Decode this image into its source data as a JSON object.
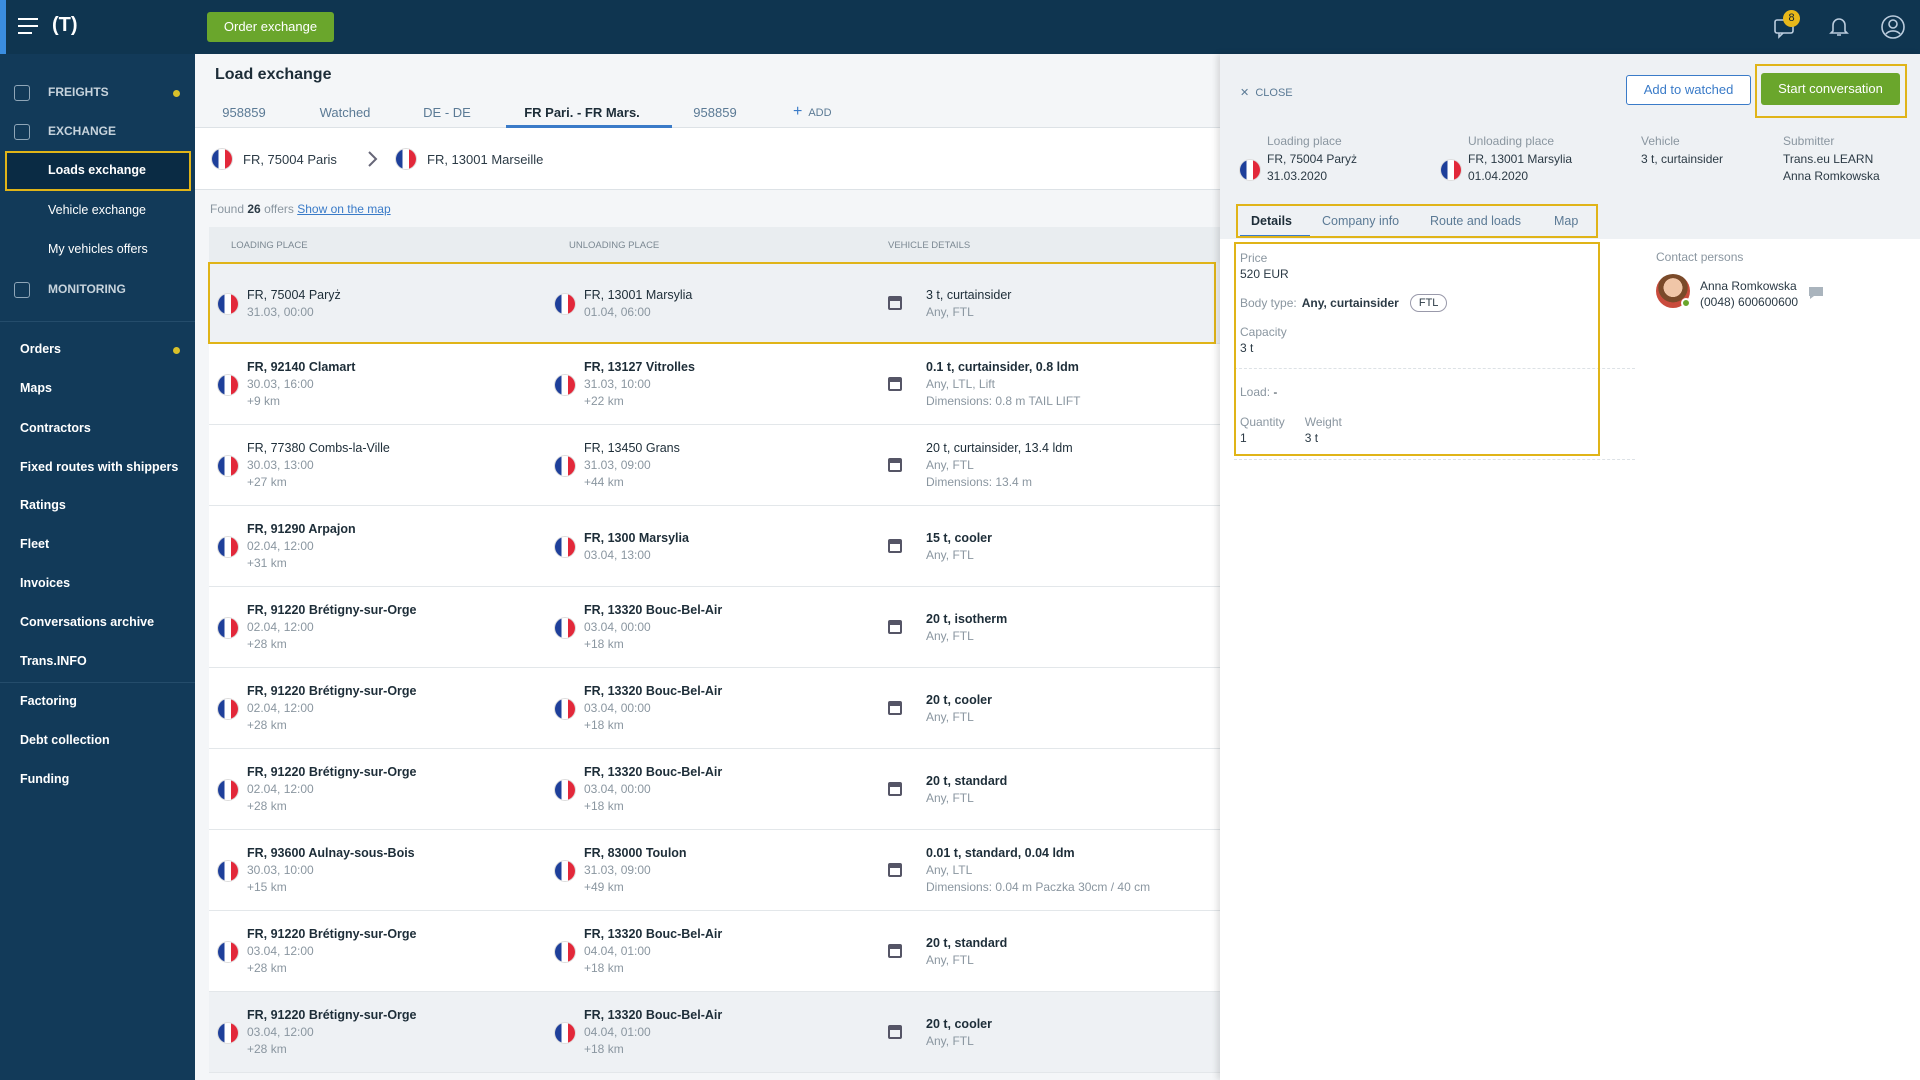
{
  "topbar": {
    "order_button": "Order exchange",
    "badge": "8"
  },
  "sidebar": {
    "items": [
      {
        "label": "FREIGHTS",
        "kind": "section",
        "dot": true
      },
      {
        "label": "EXCHANGE",
        "kind": "section"
      },
      {
        "label": "Loads exchange",
        "kind": "sub",
        "active": true
      },
      {
        "label": "Vehicle exchange",
        "kind": "sub"
      },
      {
        "label": "My vehicles offers",
        "kind": "sub"
      },
      {
        "label": "MONITORING",
        "kind": "section"
      },
      {
        "label": "Orders",
        "kind": "item",
        "dot": true
      },
      {
        "label": "Maps",
        "kind": "item"
      },
      {
        "label": "Contractors",
        "kind": "item"
      },
      {
        "label": "Fixed routes with shippers",
        "kind": "item"
      },
      {
        "label": "Ratings",
        "kind": "item"
      },
      {
        "label": "Fleet",
        "kind": "item"
      },
      {
        "label": "Invoices",
        "kind": "item"
      },
      {
        "label": "Conversations archive",
        "kind": "item"
      },
      {
        "label": "Trans.INFO",
        "kind": "item"
      },
      {
        "label": "Factoring",
        "kind": "item"
      },
      {
        "label": "Debt collection",
        "kind": "item"
      },
      {
        "label": "Funding",
        "kind": "item"
      }
    ]
  },
  "main": {
    "title": "Load exchange",
    "tabs": [
      "958859",
      "Watched",
      "DE - DE",
      "FR Pari. - FR Mars.",
      "958859"
    ],
    "active_tab": 3,
    "add": "ADD",
    "filter": {
      "from": "FR, 75004 Paris",
      "to": "FR, 13001 Marseille"
    },
    "found": {
      "prefix": "Found",
      "count": "26",
      "suffix": "offers",
      "link": "Show on the map"
    },
    "columns": [
      "LOADING PLACE",
      "UNLOADING PLACE",
      "VEHICLE DETAILS"
    ],
    "rows": [
      {
        "selected": true,
        "bold": false,
        "load": [
          "FR, 75004 Paryż",
          "31.03, 00:00"
        ],
        "unload": [
          "FR, 13001 Marsylia",
          "01.04, 06:00"
        ],
        "vehicle": [
          "3 t, curtainsider",
          "Any, FTL"
        ]
      },
      {
        "bold": true,
        "load": [
          "FR, 92140 Clamart",
          "30.03, 16:00",
          "+9 km"
        ],
        "unload": [
          "FR, 13127 Vitrolles",
          "31.03, 10:00",
          "+22 km"
        ],
        "vehicle": [
          "0.1 t, curtainsider, 0.8 ldm",
          "Any, LTL, Lift",
          "Dimensions: 0.8 m TAIL LIFT"
        ]
      },
      {
        "bold": false,
        "load": [
          "FR, 77380 Combs-la-Ville",
          "30.03, 13:00",
          "+27 km"
        ],
        "unload": [
          "FR, 13450 Grans",
          "31.03, 09:00",
          "+44 km"
        ],
        "vehicle": [
          "20 t, curtainsider, 13.4 ldm",
          "Any, FTL",
          "Dimensions: 13.4 m"
        ]
      },
      {
        "bold": true,
        "load": [
          "FR, 91290 Arpajon",
          "02.04, 12:00",
          "+31 km"
        ],
        "unload": [
          "FR, 1300 Marsylia",
          "03.04, 13:00"
        ],
        "vehicle": [
          "15 t, cooler",
          "Any, FTL"
        ]
      },
      {
        "bold": true,
        "load": [
          "FR, 91220 Brétigny-sur-Orge",
          "02.04, 12:00",
          "+28 km"
        ],
        "unload": [
          "FR, 13320 Bouc-Bel-Air",
          "03.04, 00:00",
          "+18 km"
        ],
        "vehicle": [
          "20 t, isotherm",
          "Any, FTL"
        ]
      },
      {
        "bold": true,
        "load": [
          "FR, 91220 Brétigny-sur-Orge",
          "02.04, 12:00",
          "+28 km"
        ],
        "unload": [
          "FR, 13320 Bouc-Bel-Air",
          "03.04, 00:00",
          "+18 km"
        ],
        "vehicle": [
          "20 t, cooler",
          "Any, FTL"
        ]
      },
      {
        "bold": true,
        "load": [
          "FR, 91220 Brétigny-sur-Orge",
          "02.04, 12:00",
          "+28 km"
        ],
        "unload": [
          "FR, 13320 Bouc-Bel-Air",
          "03.04, 00:00",
          "+18 km"
        ],
        "vehicle": [
          "20 t, standard",
          "Any, FTL"
        ]
      },
      {
        "bold": true,
        "load": [
          "FR, 93600 Aulnay-sous-Bois",
          "30.03, 10:00",
          "+15 km"
        ],
        "unload": [
          "FR, 83000 Toulon",
          "31.03, 09:00",
          "+49 km"
        ],
        "vehicle": [
          "0.01 t, standard, 0.04 ldm",
          "Any, LTL",
          "Dimensions: 0.04 m Paczka 30cm / 40 cm"
        ]
      },
      {
        "bold": true,
        "load": [
          "FR, 91220 Brétigny-sur-Orge",
          "03.04, 12:00",
          "+28 km"
        ],
        "unload": [
          "FR, 13320 Bouc-Bel-Air",
          "04.04, 01:00",
          "+18 km"
        ],
        "vehicle": [
          "20 t, standard",
          "Any, FTL"
        ]
      },
      {
        "bold": true,
        "shaded": true,
        "load": [
          "FR, 91220 Brétigny-sur-Orge",
          "03.04, 12:00",
          "+28 km"
        ],
        "unload": [
          "FR, 13320 Bouc-Bel-Air",
          "04.04, 01:00",
          "+18 km"
        ],
        "vehicle": [
          "20 t, cooler",
          "Any, FTL"
        ]
      }
    ]
  },
  "panel": {
    "close": "CLOSE",
    "watch_button": "Add to watched",
    "conversation_button": "Start conversation",
    "summary": [
      {
        "label": "Loading place",
        "lines": [
          "FR, 75004 Paryż",
          "31.03.2020"
        ],
        "flag": true
      },
      {
        "label": "Unloading place",
        "lines": [
          "FR, 13001 Marsylia",
          "01.04.2020"
        ],
        "flag": true
      },
      {
        "label": "Vehicle",
        "lines": [
          "3 t, curtainsider"
        ]
      },
      {
        "label": "Submitter",
        "lines": [
          "Trans.eu LEARN",
          "Anna Romkowska"
        ]
      }
    ],
    "tabs": [
      "Details",
      "Company info",
      "Route and loads",
      "Map"
    ],
    "active_tab": 0,
    "details": {
      "price_label": "Price",
      "price": "520 EUR",
      "body_label": "Body type:",
      "body": "Any, curtainsider",
      "body_badge": "FTL",
      "capacity_label": "Capacity",
      "capacity": "3 t",
      "load_label": "Load:",
      "load": "-",
      "quantity_label": "Quantity",
      "quantity": "1",
      "weight_label": "Weight",
      "weight": "3 t"
    },
    "contacts": {
      "title": "Contact persons",
      "name": "Anna Romkowska",
      "phone": "(0048) 600600600"
    }
  }
}
